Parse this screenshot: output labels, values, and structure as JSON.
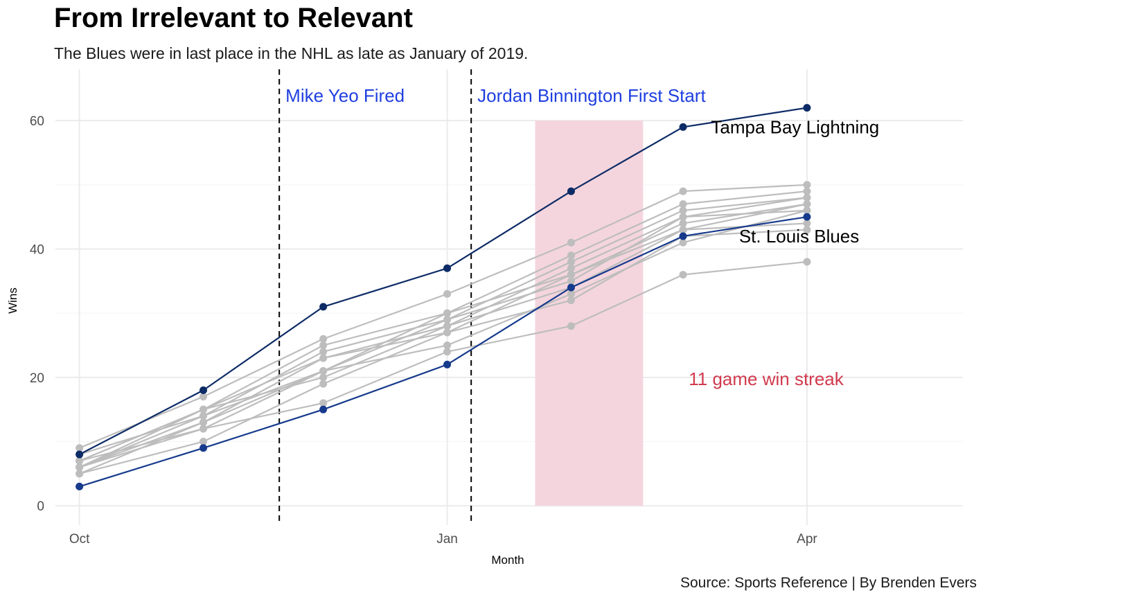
{
  "title": "From Irrelevant to Relevant",
  "subtitle": "The Blues were in last place in the NHL as late as January of 2019.",
  "caption": "Source: Sports Reference | By Brenden Evers",
  "chart_data": {
    "type": "line",
    "xlabel": "Month",
    "ylabel": "Wins",
    "x": [
      "2018-10-01",
      "2018-11-01",
      "2018-12-01",
      "2019-01-01",
      "2019-02-01",
      "2019-03-01",
      "2019-04-01"
    ],
    "x_ticks": [
      {
        "label": "Oct",
        "date": "2018-10-01"
      },
      {
        "label": "Jan",
        "date": "2019-01-01"
      },
      {
        "label": "Apr",
        "date": "2019-04-01"
      }
    ],
    "xlim": [
      "2018-09-25",
      "2019-05-10"
    ],
    "y_ticks": [
      0,
      20,
      40,
      60
    ],
    "ylim": [
      -3,
      68
    ],
    "grid": true,
    "colors": {
      "highlight_dark": "#0d2b66",
      "highlight_blue": "#163a8c",
      "other": "#bdbdbd",
      "annotation_blue": "#1f3fe0",
      "streak_text": "#d13a4e",
      "streak_band": "#f4d5de"
    },
    "series": [
      {
        "name": "Tampa Bay Lightning",
        "highlight": true,
        "color": "#0d2b66",
        "values": [
          8,
          18,
          31,
          37,
          49,
          59,
          62
        ]
      },
      {
        "name": "St. Louis Blues",
        "highlight": true,
        "color": "#163a8c",
        "values": [
          3,
          9,
          15,
          22,
          34,
          42,
          45
        ]
      },
      {
        "values": [
          9,
          17,
          26,
          33,
          41,
          49,
          50
        ],
        "color": "#bdbdbd"
      },
      {
        "values": [
          7,
          15,
          25,
          30,
          39,
          47,
          49
        ],
        "color": "#bdbdbd"
      },
      {
        "values": [
          6,
          14,
          24,
          29,
          38,
          46,
          48
        ],
        "color": "#bdbdbd"
      },
      {
        "values": [
          5,
          13,
          23,
          28,
          37,
          45,
          48
        ],
        "color": "#bdbdbd"
      },
      {
        "values": [
          7,
          15,
          23,
          27,
          36,
          44,
          47
        ],
        "color": "#bdbdbd"
      },
      {
        "values": [
          6,
          12,
          21,
          30,
          36,
          43,
          47
        ],
        "color": "#bdbdbd"
      },
      {
        "values": [
          8,
          14,
          21,
          29,
          35,
          45,
          46
        ],
        "color": "#bdbdbd"
      },
      {
        "values": [
          6,
          15,
          20,
          28,
          34,
          43,
          44
        ],
        "color": "#bdbdbd"
      },
      {
        "values": [
          5,
          10,
          19,
          27,
          32,
          42,
          43
        ],
        "color": "#bdbdbd"
      },
      {
        "values": [
          7,
          12,
          16,
          24,
          28,
          36,
          38
        ],
        "color": "#bdbdbd"
      },
      {
        "values": [
          6,
          13,
          21,
          25,
          33,
          41,
          46
        ],
        "color": "#bdbdbd"
      }
    ],
    "vlines": [
      {
        "date": "2018-11-20",
        "label": "Mike Yeo Fired"
      },
      {
        "date": "2019-01-07",
        "label": "Jordan Binnington First Start"
      }
    ],
    "shaded_region": {
      "x_start": "2019-01-23",
      "x_end": "2019-02-19",
      "y_start": 0,
      "y_end": 60,
      "label": "11 game win streak"
    },
    "series_labels": [
      {
        "text": "Tampa Bay Lightning",
        "date": "2019-03-08",
        "y": 59
      },
      {
        "text": "St. Louis Blues",
        "date": "2019-03-15",
        "y": 42
      }
    ]
  }
}
